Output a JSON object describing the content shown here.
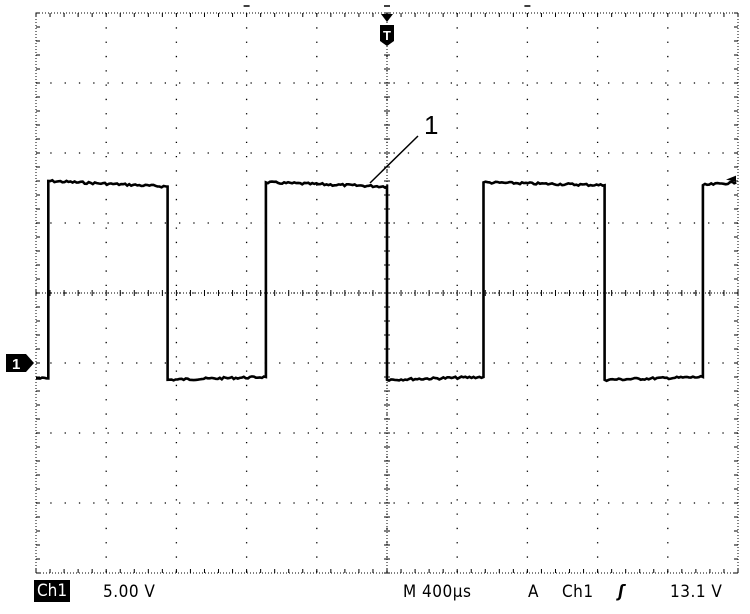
{
  "chart_data": {
    "type": "line",
    "title": "",
    "xlabel": "",
    "ylabel": "",
    "x_unit": "µs",
    "y_unit": "V",
    "xlim": [
      -2000,
      2000
    ],
    "ylim": [
      -15,
      25
    ],
    "grid": true,
    "x_divisions": 10,
    "y_divisions": 8,
    "series": [
      {
        "points": [
          [
            -2000,
            -1.1
          ],
          [
            -1930,
            -1.1
          ],
          [
            -1930,
            13.0
          ],
          [
            -1250,
            12.6
          ],
          [
            -1250,
            -1.2
          ],
          [
            -690,
            -1.0
          ],
          [
            -690,
            12.9
          ],
          [
            0,
            12.6
          ],
          [
            0,
            -1.2
          ],
          [
            550,
            -1.0
          ],
          [
            550,
            12.9
          ],
          [
            1240,
            12.7
          ],
          [
            1240,
            -1.2
          ],
          [
            1800,
            -1.0
          ],
          [
            1800,
            12.7
          ],
          [
            1990,
            12.9
          ]
        ]
      }
    ],
    "annotation": {
      "label": "1"
    },
    "ground_marker": {
      "label": "1",
      "level_v": 0
    },
    "trigger_marker": {
      "label": "T",
      "time_us": 0
    },
    "trigger_level_v": 13.1,
    "trace_color": "#000000"
  },
  "status": {
    "channel": "Ch1",
    "scale": "5.00 V",
    "timebase": "M 400µs",
    "trigger_mode": "A",
    "trigger_source": "Ch1",
    "trigger_slope_symbol": "ʃ",
    "trigger_level": "13.1 V"
  }
}
